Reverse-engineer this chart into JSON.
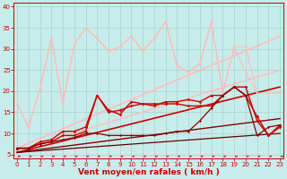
{
  "background_color": "#c8ecea",
  "grid_color": "#aad8d4",
  "xlabel": "Vent moyen/en rafales ( km/h )",
  "xlabel_color": "#cc0000",
  "xlabel_fontsize": 6.5,
  "tick_color": "#cc0000",
  "ylim": [
    4,
    41
  ],
  "xlim": [
    -0.3,
    23.3
  ],
  "yticks": [
    5,
    10,
    15,
    20,
    25,
    30,
    35,
    40
  ],
  "xticks": [
    0,
    1,
    2,
    3,
    4,
    5,
    6,
    7,
    8,
    9,
    10,
    11,
    12,
    13,
    14,
    15,
    16,
    17,
    18,
    19,
    20,
    21,
    22,
    23
  ],
  "tick_fontsize": 5.0,
  "series": [
    {
      "x": [
        0,
        1,
        2,
        3,
        4,
        5,
        6,
        7,
        8,
        9,
        10,
        11,
        12,
        13,
        14,
        15,
        16,
        17,
        18,
        19,
        20,
        21
      ],
      "y": [
        17.0,
        11.5,
        20.5,
        32.5,
        17.0,
        31.0,
        35.0,
        32.5,
        29.5,
        30.5,
        33.0,
        29.5,
        32.5,
        36.5,
        26.0,
        24.5,
        26.5,
        36.5,
        19.5,
        30.5,
        24.5,
        19.5
      ],
      "color": "#ffbbbb",
      "lw": 0.8,
      "marker": "D",
      "ms": 1.5
    },
    {
      "x": [
        0,
        1,
        2,
        3,
        4,
        5,
        6,
        7,
        8,
        9,
        10,
        11,
        12,
        13,
        14,
        15,
        16,
        17,
        18,
        19,
        20,
        21,
        22,
        23
      ],
      "y": [
        17.0,
        11.5,
        20.5,
        32.5,
        17.0,
        31.0,
        35.0,
        32.5,
        29.5,
        30.5,
        33.0,
        29.5,
        32.5,
        36.5,
        26.0,
        24.5,
        26.5,
        36.5,
        19.5,
        30.5,
        30.5,
        19.5,
        19.5,
        19.5
      ],
      "color": "#ffbbbb",
      "lw": 0.8,
      "marker": "D",
      "ms": 1.5
    },
    {
      "x": [
        0,
        23
      ],
      "y": [
        6.5,
        33.0
      ],
      "color": "#ffbbbb",
      "lw": 1.2,
      "marker": null,
      "ms": 0
    },
    {
      "x": [
        0,
        23
      ],
      "y": [
        6.0,
        25.0
      ],
      "color": "#ffbbbb",
      "lw": 1.0,
      "marker": null,
      "ms": 0
    },
    {
      "x": [
        0,
        1,
        2,
        3,
        4,
        5,
        6,
        7,
        8,
        9,
        10,
        11,
        12,
        13,
        14,
        15,
        16,
        17,
        18,
        19,
        20,
        21,
        22,
        23
      ],
      "y": [
        6.5,
        6.5,
        8.0,
        8.5,
        10.5,
        10.5,
        11.5,
        19.0,
        15.0,
        15.5,
        16.5,
        17.0,
        16.5,
        17.5,
        17.5,
        18.0,
        17.5,
        19.0,
        19.0,
        21.0,
        19.0,
        14.0,
        9.5,
        12.0
      ],
      "color": "#cc0000",
      "lw": 1.0,
      "marker": "D",
      "ms": 1.8
    },
    {
      "x": [
        0,
        1,
        2,
        3,
        4,
        5,
        6,
        7,
        8,
        9,
        10,
        11,
        12,
        13,
        14,
        15,
        16,
        17,
        18,
        19,
        20,
        21,
        22,
        23
      ],
      "y": [
        6.5,
        6.5,
        7.5,
        8.0,
        9.5,
        9.5,
        10.5,
        19.0,
        15.5,
        14.5,
        17.5,
        17.0,
        17.0,
        17.0,
        17.0,
        16.5,
        16.5,
        16.5,
        19.0,
        21.0,
        21.0,
        13.0,
        9.5,
        11.5
      ],
      "color": "#cc0000",
      "lw": 1.0,
      "marker": "D",
      "ms": 1.8
    },
    {
      "x": [
        0,
        1,
        2,
        3,
        4,
        5,
        6,
        7,
        8,
        9,
        10,
        11,
        12,
        13,
        14,
        15,
        16,
        17,
        18,
        19,
        20,
        21,
        22,
        23
      ],
      "y": [
        6.5,
        6.5,
        7.5,
        8.0,
        8.5,
        9.0,
        10.0,
        10.0,
        9.5,
        9.5,
        9.5,
        9.5,
        9.5,
        10.0,
        10.5,
        10.5,
        13.0,
        16.0,
        19.0,
        21.0,
        19.0,
        9.5,
        11.5,
        12.0
      ],
      "color": "#880000",
      "lw": 0.9,
      "marker": "D",
      "ms": 1.5
    },
    {
      "x": [
        0,
        23
      ],
      "y": [
        5.5,
        21.0
      ],
      "color": "#cc0000",
      "lw": 1.2,
      "marker": null,
      "ms": 0
    },
    {
      "x": [
        0,
        23
      ],
      "y": [
        5.5,
        13.5
      ],
      "color": "#880000",
      "lw": 1.0,
      "marker": null,
      "ms": 0
    },
    {
      "x": [
        0,
        23
      ],
      "y": [
        5.5,
        10.0
      ],
      "color": "#660000",
      "lw": 0.9,
      "marker": null,
      "ms": 0
    }
  ]
}
